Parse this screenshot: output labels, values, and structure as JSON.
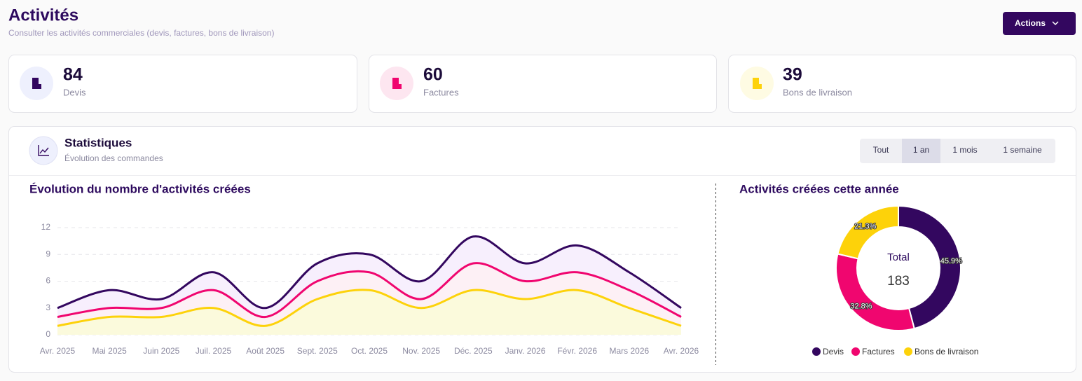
{
  "header": {
    "title": "Activités",
    "subtitle": "Consulter les activités commerciales (devis, factures, bons de livraison)",
    "actions": "Actions"
  },
  "cards": [
    {
      "value": 84,
      "label": "Devis"
    },
    {
      "value": 60,
      "label": "Factures"
    },
    {
      "value": 39,
      "label": "Bons de livraison"
    }
  ],
  "panel": {
    "title": "Statistiques",
    "subtitle": "Évolution des commandes",
    "tabs": [
      "Tout",
      "1 an",
      "1 mois",
      "1 semaine"
    ],
    "active_tab": 1
  },
  "chart_data": [
    {
      "type": "line",
      "title": "Évolution du nombre d'activités créées",
      "categories": [
        "Avr. 2025",
        "Mai 2025",
        "Juin 2025",
        "Juil. 2025",
        "Août 2025",
        "Sept. 2025",
        "Oct. 2025",
        "Nov. 2025",
        "Déc. 2025",
        "Janv. 2026",
        "Févr. 2026",
        "Mars 2026",
        "Avr. 2026"
      ],
      "series": [
        {
          "color": "#33075f",
          "values": [
            3,
            5,
            4,
            7,
            3,
            8,
            9,
            6,
            11,
            8,
            10,
            7,
            3
          ]
        },
        {
          "color": "#f0066f",
          "values": [
            2,
            3,
            3,
            5,
            2,
            6,
            7,
            4,
            8,
            6,
            7,
            5,
            2
          ]
        },
        {
          "color": "#fdd20a",
          "values": [
            1,
            2,
            2,
            3,
            1,
            4,
            5,
            3,
            5,
            4,
            5,
            3,
            1
          ]
        }
      ],
      "ylim": [
        0,
        12
      ],
      "yticks": [
        0,
        3,
        6,
        9,
        12
      ],
      "grid": true
    },
    {
      "type": "pie",
      "title": "Activités créées cette année",
      "categories": [
        "Devis",
        "Factures",
        "Bons de livraison"
      ],
      "values": [
        45.9,
        32.8,
        21.3
      ],
      "value_labels": [
        "45.9%",
        "32.8%",
        "21.3%"
      ],
      "colors": [
        "#33075f",
        "#f0066f",
        "#fdd20a"
      ],
      "center_label": "Total",
      "center_value": 183
    }
  ]
}
